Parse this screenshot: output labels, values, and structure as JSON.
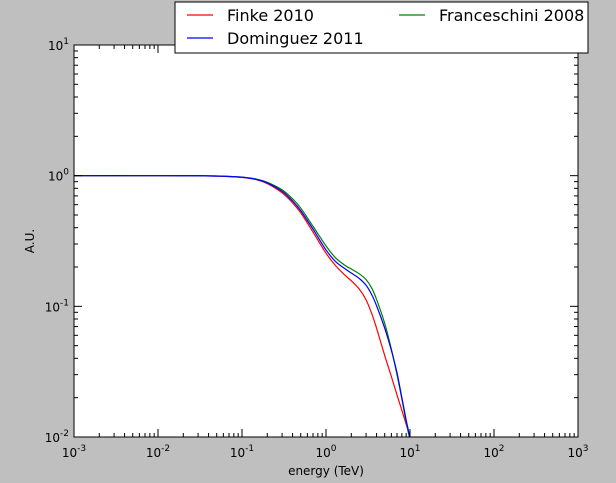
{
  "chart_data": {
    "type": "line",
    "xlabel": "energy (TeV)",
    "ylabel": "A.U.",
    "xscale": "log",
    "yscale": "log",
    "xlim": [
      0.001,
      1000
    ],
    "ylim": [
      0.01,
      10
    ],
    "x_ticks": [
      {
        "value": 0.001,
        "base": "10",
        "exp": "-3"
      },
      {
        "value": 0.01,
        "base": "10",
        "exp": "-2"
      },
      {
        "value": 0.1,
        "base": "10",
        "exp": "-1"
      },
      {
        "value": 1,
        "base": "10",
        "exp": "0"
      },
      {
        "value": 10,
        "base": "10",
        "exp": "1"
      },
      {
        "value": 100,
        "base": "10",
        "exp": "2"
      },
      {
        "value": 1000,
        "base": "10",
        "exp": "3"
      }
    ],
    "y_ticks": [
      {
        "value": 0.01,
        "base": "10",
        "exp": "-2"
      },
      {
        "value": 0.1,
        "base": "10",
        "exp": "-1"
      },
      {
        "value": 1,
        "base": "10",
        "exp": "0"
      },
      {
        "value": 10,
        "base": "10",
        "exp": "1"
      }
    ],
    "grid": false,
    "legend_position": "top",
    "legend_columns": 2,
    "series": [
      {
        "name": "Finke 2010",
        "color": "#ff0000",
        "x": [
          0.001,
          0.01,
          0.03,
          0.06,
          0.1,
          0.15,
          0.2,
          0.3,
          0.4,
          0.5,
          0.7,
          1,
          1.3,
          1.7,
          2,
          2.5,
          3,
          3.5,
          4,
          5,
          6,
          7,
          8,
          9,
          9.5,
          10
        ],
        "y": [
          1.0,
          1.0,
          0.998,
          0.99,
          0.97,
          0.93,
          0.87,
          0.74,
          0.62,
          0.52,
          0.37,
          0.255,
          0.205,
          0.172,
          0.157,
          0.135,
          0.112,
          0.088,
          0.068,
          0.042,
          0.029,
          0.021,
          0.016,
          0.0125,
          0.0112,
          0.0098
        ]
      },
      {
        "name": "Dominguez 2011",
        "color": "#0000ff",
        "x": [
          0.001,
          0.01,
          0.03,
          0.06,
          0.1,
          0.15,
          0.2,
          0.3,
          0.4,
          0.5,
          0.7,
          1,
          1.3,
          1.7,
          2,
          2.5,
          3,
          3.5,
          4,
          5,
          6,
          7,
          8,
          9,
          9.5,
          10
        ],
        "y": [
          1.0,
          1.0,
          0.998,
          0.99,
          0.972,
          0.935,
          0.88,
          0.76,
          0.64,
          0.54,
          0.39,
          0.27,
          0.22,
          0.193,
          0.18,
          0.163,
          0.145,
          0.123,
          0.101,
          0.068,
          0.046,
          0.031,
          0.02,
          0.0135,
          0.0115,
          0.0098
        ]
      },
      {
        "name": "Franceschini 2008",
        "color": "#008000",
        "x": [
          0.001,
          0.01,
          0.03,
          0.06,
          0.1,
          0.15,
          0.2,
          0.3,
          0.4,
          0.5,
          0.7,
          1,
          1.3,
          1.7,
          2,
          2.5,
          3,
          3.5,
          4,
          5,
          6,
          7,
          8,
          9,
          9.5,
          10
        ],
        "y": [
          1.0,
          1.0,
          0.998,
          0.99,
          0.974,
          0.94,
          0.89,
          0.78,
          0.665,
          0.565,
          0.41,
          0.29,
          0.235,
          0.205,
          0.193,
          0.177,
          0.16,
          0.138,
          0.113,
          0.074,
          0.047,
          0.03,
          0.0195,
          0.013,
          0.011,
          0.0095
        ]
      }
    ]
  }
}
